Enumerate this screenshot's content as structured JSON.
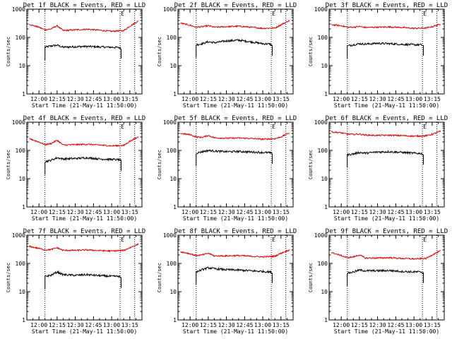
{
  "figure": {
    "background": "#ffffff",
    "layout": "3x3 grid of panels",
    "colors": {
      "events": "#000000",
      "lld": "#e00000"
    }
  },
  "chart_data": [
    {
      "type": "line",
      "title": "Det 1f BLACK = Events, RED = LLD",
      "xlabel": "Start Time (21-May-11 11:50:00)",
      "ylabel": "Counts/sec",
      "yscale": "log",
      "ylim": [
        1,
        1000
      ],
      "xlim": [
        "11:50",
        "13:25"
      ],
      "x_ticks": [
        "12:00",
        "12:15",
        "12:30",
        "12:45",
        "13:00",
        "13:15"
      ],
      "y_ticks": [
        "1",
        "10",
        "100",
        "1000"
      ],
      "annotation": "E",
      "vertical_markers": [
        "12:05",
        "13:07",
        "13:19"
      ],
      "series": [
        {
          "name": "BLACK = Events",
          "color": "#000000",
          "x": [
            "12:05",
            "12:10",
            "12:15",
            "12:20",
            "12:30",
            "12:40",
            "12:50",
            "13:00",
            "13:06",
            "13:08"
          ],
          "values": [
            45,
            50,
            53,
            45,
            47,
            48,
            46,
            45,
            44,
            40
          ]
        },
        {
          "name": "RED = LLD",
          "color": "#e00000",
          "x": [
            "11:52",
            "12:00",
            "12:05",
            "12:10",
            "12:15",
            "12:20",
            "12:30",
            "12:40",
            "12:50",
            "13:00",
            "13:10",
            "13:15",
            "13:22"
          ],
          "values": [
            290,
            230,
            185,
            200,
            260,
            175,
            185,
            195,
            180,
            165,
            175,
            250,
            380
          ]
        }
      ]
    },
    {
      "type": "line",
      "title": "Det 2f BLACK = Events, RED = LLD",
      "xlabel": "Start Time (21-May-11 11:50:00)",
      "ylabel": "Counts/sec",
      "yscale": "log",
      "ylim": [
        1,
        1000
      ],
      "xlim": [
        "11:50",
        "13:25"
      ],
      "x_ticks": [
        "12:00",
        "12:15",
        "12:30",
        "12:45",
        "13:00",
        "13:15"
      ],
      "y_ticks": [
        "1",
        "10",
        "100",
        "1000"
      ],
      "annotation": "E",
      "vertical_markers": [
        "12:05",
        "13:07",
        "13:19"
      ],
      "series": [
        {
          "name": "BLACK = Events",
          "color": "#000000",
          "x": [
            "12:05",
            "12:10",
            "12:15",
            "12:20",
            "12:30",
            "12:40",
            "12:50",
            "13:00",
            "13:06",
            "13:08"
          ],
          "values": [
            55,
            60,
            70,
            65,
            75,
            80,
            70,
            60,
            58,
            50
          ]
        },
        {
          "name": "RED = LLD",
          "color": "#e00000",
          "x": [
            "11:52",
            "12:00",
            "12:05",
            "12:10",
            "12:15",
            "12:20",
            "12:30",
            "12:40",
            "12:50",
            "13:00",
            "13:10",
            "13:15",
            "13:22"
          ],
          "values": [
            320,
            270,
            230,
            240,
            260,
            230,
            240,
            250,
            230,
            210,
            215,
            280,
            400
          ]
        }
      ]
    },
    {
      "type": "line",
      "title": "Det 3f BLACK = Events, RED = LLD",
      "xlabel": "Start Time (21-May-11 11:50:00)",
      "ylabel": "Counts/sec",
      "yscale": "log",
      "ylim": [
        1,
        1000
      ],
      "xlim": [
        "11:50",
        "13:25"
      ],
      "x_ticks": [
        "12:00",
        "12:15",
        "12:30",
        "12:45",
        "13:00",
        "13:15"
      ],
      "y_ticks": [
        "1",
        "10",
        "100",
        "1000"
      ],
      "annotation": "E",
      "vertical_markers": [
        "12:05",
        "13:07",
        "13:19"
      ],
      "series": [
        {
          "name": "BLACK = Events",
          "color": "#000000",
          "x": [
            "12:05",
            "12:10",
            "12:15",
            "12:20",
            "12:30",
            "12:40",
            "12:50",
            "13:00",
            "13:06",
            "13:08"
          ],
          "values": [
            50,
            55,
            60,
            58,
            62,
            60,
            57,
            55,
            55,
            50
          ]
        },
        {
          "name": "RED = LLD",
          "color": "#e00000",
          "x": [
            "11:52",
            "12:00",
            "12:05",
            "12:10",
            "12:15",
            "12:20",
            "12:30",
            "12:40",
            "12:50",
            "13:00",
            "13:10",
            "13:15",
            "13:22"
          ],
          "values": [
            280,
            260,
            230,
            230,
            245,
            225,
            230,
            235,
            225,
            210,
            215,
            240,
            300
          ]
        }
      ]
    },
    {
      "type": "line",
      "title": "Det 4f BLACK = Events, RED = LLD",
      "xlabel": "Start Time (21-May-11 11:50:00)",
      "ylabel": "Counts/sec",
      "yscale": "log",
      "ylim": [
        1,
        1000
      ],
      "xlim": [
        "11:50",
        "13:25"
      ],
      "x_ticks": [
        "12:00",
        "12:15",
        "12:30",
        "12:45",
        "13:00",
        "13:15"
      ],
      "y_ticks": [
        "1",
        "10",
        "100",
        "1000"
      ],
      "annotation": "E",
      "vertical_markers": [
        "12:05",
        "13:07",
        "13:19"
      ],
      "series": [
        {
          "name": "BLACK = Events",
          "color": "#000000",
          "x": [
            "12:05",
            "12:10",
            "12:15",
            "12:20",
            "12:30",
            "12:40",
            "12:50",
            "13:00",
            "13:06",
            "13:08"
          ],
          "values": [
            40,
            45,
            55,
            50,
            52,
            55,
            50,
            48,
            47,
            42
          ]
        },
        {
          "name": "RED = LLD",
          "color": "#e00000",
          "x": [
            "11:52",
            "12:00",
            "12:05",
            "12:10",
            "12:15",
            "12:20",
            "12:30",
            "12:40",
            "12:50",
            "13:00",
            "13:10",
            "13:15",
            "13:22"
          ],
          "values": [
            260,
            200,
            160,
            175,
            230,
            155,
            160,
            165,
            155,
            145,
            150,
            210,
            300
          ]
        }
      ]
    },
    {
      "type": "line",
      "title": "Det 5f BLACK = Events, RED = LLD",
      "xlabel": "Start Time (21-May-11 11:50:00)",
      "ylabel": "Counts/sec",
      "yscale": "log",
      "ylim": [
        1,
        1000
      ],
      "xlim": [
        "11:50",
        "13:25"
      ],
      "x_ticks": [
        "12:00",
        "12:15",
        "12:30",
        "12:45",
        "13:00",
        "13:15"
      ],
      "y_ticks": [
        "1",
        "10",
        "100",
        "1000"
      ],
      "annotation": "E",
      "vertical_markers": [
        "12:05",
        "13:07",
        "13:19"
      ],
      "series": [
        {
          "name": "BLACK = Events",
          "color": "#000000",
          "x": [
            "12:05",
            "12:10",
            "12:15",
            "12:20",
            "12:30",
            "12:40",
            "12:50",
            "13:00",
            "13:06",
            "13:08"
          ],
          "values": [
            80,
            90,
            100,
            95,
            90,
            92,
            88,
            85,
            82,
            75
          ]
        },
        {
          "name": "RED = LLD",
          "color": "#e00000",
          "x": [
            "11:52",
            "12:00",
            "12:05",
            "12:10",
            "12:15",
            "12:20",
            "12:30",
            "12:40",
            "12:50",
            "13:00",
            "13:10",
            "13:15",
            "13:22"
          ],
          "values": [
            400,
            360,
            300,
            290,
            340,
            280,
            270,
            275,
            265,
            250,
            260,
            300,
            420
          ]
        }
      ]
    },
    {
      "type": "line",
      "title": "Det 6f BLACK = Events, RED = LLD",
      "xlabel": "Start Time (21-May-11 11:50:00)",
      "ylabel": "Counts/sec",
      "yscale": "log",
      "ylim": [
        1,
        1000
      ],
      "xlim": [
        "11:50",
        "13:25"
      ],
      "x_ticks": [
        "12:00",
        "12:15",
        "12:30",
        "12:45",
        "13:00",
        "13:15"
      ],
      "y_ticks": [
        "1",
        "10",
        "100",
        "1000"
      ],
      "annotation": "E",
      "vertical_markers": [
        "12:05",
        "13:07",
        "13:19"
      ],
      "series": [
        {
          "name": "BLACK = Events",
          "color": "#000000",
          "x": [
            "12:05",
            "12:10",
            "12:15",
            "12:20",
            "12:30",
            "12:40",
            "12:50",
            "13:00",
            "13:06",
            "13:08"
          ],
          "values": [
            70,
            75,
            85,
            80,
            88,
            90,
            85,
            80,
            78,
            70
          ]
        },
        {
          "name": "RED = LLD",
          "color": "#e00000",
          "x": [
            "11:52",
            "12:00",
            "12:05",
            "12:10",
            "12:15",
            "12:20",
            "12:30",
            "12:40",
            "12:50",
            "13:00",
            "13:10",
            "13:15",
            "13:22"
          ],
          "values": [
            450,
            420,
            380,
            370,
            380,
            350,
            340,
            345,
            335,
            320,
            330,
            370,
            480
          ]
        }
      ]
    },
    {
      "type": "line",
      "title": "Det 7f BLACK = Events, RED = LLD",
      "xlabel": "Start Time (21-May-11 11:50:00)",
      "ylabel": "Counts/sec",
      "yscale": "log",
      "ylim": [
        1,
        1000
      ],
      "xlim": [
        "11:50",
        "13:25"
      ],
      "x_ticks": [
        "12:00",
        "12:15",
        "12:30",
        "12:45",
        "13:00",
        "13:15"
      ],
      "y_ticks": [
        "1",
        "10",
        "100",
        "1000"
      ],
      "annotation": "E",
      "vertical_markers": [
        "12:05",
        "13:07",
        "13:19"
      ],
      "series": [
        {
          "name": "BLACK = Events",
          "color": "#000000",
          "x": [
            "12:05",
            "12:10",
            "12:15",
            "12:20",
            "12:30",
            "12:40",
            "12:50",
            "13:00",
            "13:06",
            "13:08"
          ],
          "values": [
            35,
            38,
            50,
            40,
            38,
            40,
            37,
            35,
            35,
            30
          ]
        },
        {
          "name": "RED = LLD",
          "color": "#e00000",
          "x": [
            "11:52",
            "12:00",
            "12:05",
            "12:10",
            "12:15",
            "12:20",
            "12:30",
            "12:40",
            "12:50",
            "13:00",
            "13:10",
            "13:15",
            "13:22"
          ],
          "values": [
            400,
            340,
            300,
            310,
            360,
            290,
            290,
            300,
            285,
            275,
            290,
            360,
            480
          ]
        }
      ]
    },
    {
      "type": "line",
      "title": "Det 8f BLACK = Events, RED = LLD",
      "xlabel": "Start Time (21-May-11 11:50:00)",
      "ylabel": "Counts/sec",
      "yscale": "log",
      "ylim": [
        1,
        1000
      ],
      "xlim": [
        "11:50",
        "13:25"
      ],
      "x_ticks": [
        "12:00",
        "12:15",
        "12:30",
        "12:45",
        "13:00",
        "13:15"
      ],
      "y_ticks": [
        "1",
        "10",
        "100",
        "1000"
      ],
      "annotation": "E",
      "vertical_markers": [
        "12:05",
        "13:07",
        "13:19"
      ],
      "series": [
        {
          "name": "BLACK = Events",
          "color": "#000000",
          "x": [
            "12:05",
            "12:10",
            "12:15",
            "12:20",
            "12:30",
            "12:40",
            "12:50",
            "13:00",
            "13:06",
            "13:08"
          ],
          "values": [
            50,
            60,
            70,
            65,
            60,
            58,
            55,
            52,
            50,
            45
          ]
        },
        {
          "name": "RED = LLD",
          "color": "#e00000",
          "x": [
            "11:52",
            "12:00",
            "12:05",
            "12:10",
            "12:15",
            "12:20",
            "12:30",
            "12:40",
            "12:50",
            "13:00",
            "13:10",
            "13:15",
            "13:22"
          ],
          "values": [
            260,
            220,
            190,
            200,
            230,
            185,
            185,
            190,
            180,
            170,
            180,
            230,
            300
          ]
        }
      ]
    },
    {
      "type": "line",
      "title": "Det 9f BLACK = Events, RED = LLD",
      "xlabel": "Start Time (21-May-11 11:50:00)",
      "ylabel": "Counts/sec",
      "yscale": "log",
      "ylim": [
        1,
        1000
      ],
      "xlim": [
        "11:50",
        "13:25"
      ],
      "x_ticks": [
        "12:00",
        "12:15",
        "12:30",
        "12:45",
        "13:00",
        "13:15"
      ],
      "y_ticks": [
        "1",
        "10",
        "100",
        "1000"
      ],
      "annotation": "E",
      "vertical_markers": [
        "12:05",
        "13:07",
        "13:19"
      ],
      "series": [
        {
          "name": "BLACK = Events",
          "color": "#000000",
          "x": [
            "12:05",
            "12:10",
            "12:15",
            "12:20",
            "12:30",
            "12:40",
            "12:50",
            "13:00",
            "13:06",
            "13:08"
          ],
          "values": [
            45,
            50,
            58,
            55,
            55,
            56,
            52,
            50,
            50,
            45
          ]
        },
        {
          "name": "RED = LLD",
          "color": "#e00000",
          "x": [
            "11:52",
            "12:00",
            "12:05",
            "12:10",
            "12:15",
            "12:20",
            "12:30",
            "12:40",
            "12:50",
            "13:00",
            "13:10",
            "13:15",
            "13:22"
          ],
          "values": [
            240,
            190,
            160,
            170,
            200,
            155,
            155,
            160,
            150,
            145,
            150,
            200,
            280
          ]
        }
      ]
    }
  ]
}
